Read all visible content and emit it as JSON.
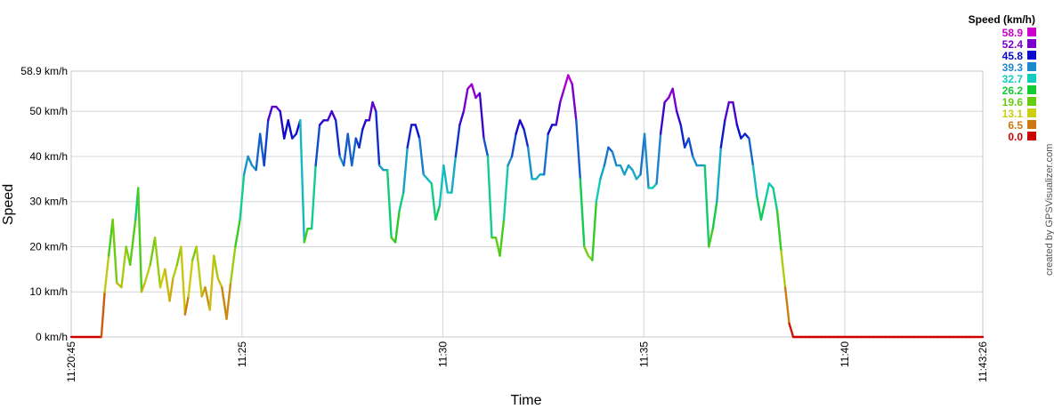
{
  "chart_data": {
    "type": "line",
    "xlabel": "Time",
    "ylabel": "Speed",
    "credit": "created by GPSVisualizer.com",
    "xlim": [
      0,
      1361
    ],
    "ylim": [
      0,
      58.9
    ],
    "y_ticks": [
      {
        "value": 0,
        "label": "0 km/h"
      },
      {
        "value": 10,
        "label": "10 km/h"
      },
      {
        "value": 20,
        "label": "20 km/h"
      },
      {
        "value": 30,
        "label": "30 km/h"
      },
      {
        "value": 40,
        "label": "40 km/h"
      },
      {
        "value": 50,
        "label": "50 km/h"
      },
      {
        "value": 58.9,
        "label": "58.9 km/h"
      }
    ],
    "x_ticks": [
      {
        "t": 0,
        "label": "11:20:45"
      },
      {
        "t": 255,
        "label": "11:25"
      },
      {
        "t": 555,
        "label": "11:30"
      },
      {
        "t": 855,
        "label": "11:35"
      },
      {
        "t": 1155,
        "label": "11:40"
      },
      {
        "t": 1361,
        "label": "11:43:26"
      }
    ],
    "legend": {
      "title": "Speed (km/h)",
      "placement": "top-right",
      "items": [
        {
          "label": "58.9",
          "color": "#cc00cc"
        },
        {
          "label": "52.4",
          "color": "#7a00cc"
        },
        {
          "label": "45.8",
          "color": "#0a0acc"
        },
        {
          "label": "39.3",
          "color": "#1a88cc"
        },
        {
          "label": "32.7",
          "color": "#11ccbb"
        },
        {
          "label": "26.2",
          "color": "#11cc33"
        },
        {
          "label": "19.6",
          "color": "#66cc11"
        },
        {
          "label": "13.1",
          "color": "#cccc11"
        },
        {
          "label": "6.5",
          "color": "#cc7711"
        },
        {
          "label": "0.0",
          "color": "#cc0000"
        }
      ]
    },
    "series": [
      {
        "t": [
          0,
          45,
          50,
          56,
          62,
          68,
          75,
          82,
          88,
          96,
          100,
          105,
          110,
          118,
          125,
          133,
          140,
          147,
          152,
          158,
          164,
          170,
          175,
          181,
          187,
          195,
          200,
          207,
          213,
          219,
          225,
          232,
          238,
          245,
          252,
          258,
          264,
          270,
          276,
          282,
          288,
          294,
          300,
          306,
          312,
          318,
          324,
          330,
          336,
          342,
          348,
          353,
          359,
          365,
          371,
          377,
          383,
          389,
          395,
          401,
          407,
          413,
          419,
          425,
          430,
          435,
          440,
          445,
          450,
          455,
          460,
          466,
          472,
          478,
          484,
          490,
          496,
          502,
          508,
          514,
          520,
          526,
          532,
          538,
          544,
          550,
          556,
          562,
          568,
          574,
          580,
          586,
          592,
          598,
          604,
          610,
          616,
          622,
          628,
          634,
          640,
          646,
          652,
          658,
          664,
          670,
          676,
          682,
          688,
          694,
          700,
          706,
          712,
          718,
          724,
          730,
          736,
          742,
          748,
          754,
          760,
          766,
          772,
          778,
          784,
          790,
          796,
          802,
          808,
          814,
          820,
          826,
          832,
          838,
          844,
          850,
          856,
          862,
          868,
          874,
          880,
          886,
          892,
          898,
          904,
          910,
          916,
          922,
          928,
          934,
          940,
          946,
          952,
          958,
          964,
          970,
          976,
          982,
          988,
          994,
          1000,
          1006,
          1012,
          1018,
          1024,
          1030,
          1036,
          1042,
          1048,
          1054,
          1060,
          1066,
          1072,
          1078,
          1084,
          1090,
          1096,
          1102,
          1108,
          1114,
          1120,
          1126,
          1132,
          1138,
          1144,
          1150,
          1156,
          1162,
          1168,
          1174,
          1180,
          1186,
          1192,
          1198,
          1204,
          1210,
          1216,
          1222,
          1228,
          1234,
          1240,
          1246,
          1252,
          1258,
          1264,
          1270,
          1276,
          1282,
          1288,
          1294,
          1300,
          1306,
          1312,
          1318,
          1324,
          1330,
          1336,
          1340,
          1361
        ],
        "values": [
          0,
          0,
          10,
          18,
          26,
          12,
          11,
          20,
          16,
          26,
          33,
          10,
          12,
          16,
          22,
          11,
          15,
          8,
          13,
          16,
          20,
          5,
          9,
          17,
          20,
          9,
          11,
          6,
          18,
          13,
          11,
          4,
          12,
          20,
          26,
          36,
          40,
          38,
          37,
          45,
          38,
          48,
          51,
          51,
          50,
          44,
          48,
          44,
          45,
          48,
          21,
          24,
          24,
          38,
          47,
          48,
          48,
          50,
          48,
          40,
          38,
          45,
          38,
          44,
          42,
          46,
          48,
          48,
          52,
          50,
          38,
          37,
          37,
          22,
          21,
          28,
          32,
          42,
          47,
          47,
          44,
          36,
          35,
          34,
          26,
          29,
          38,
          32,
          32,
          40,
          47,
          50,
          55,
          56,
          53,
          54,
          44,
          40,
          22,
          22,
          18,
          26,
          38,
          40,
          45,
          48,
          46,
          42,
          35,
          35,
          36,
          36,
          45,
          47,
          47,
          52,
          55,
          58,
          56,
          48,
          35,
          20,
          18,
          17,
          30,
          35,
          38,
          42,
          41,
          38,
          38,
          36,
          38,
          37,
          35,
          36,
          45,
          33,
          33,
          34,
          45,
          52,
          53,
          55,
          50,
          47,
          42,
          44,
          40,
          38,
          38,
          38,
          20,
          24,
          30,
          42,
          48,
          52,
          52,
          47,
          44,
          45,
          44,
          38,
          31,
          26,
          30,
          34,
          33,
          28,
          19,
          11,
          3,
          0,
          0,
          0,
          0,
          0,
          0,
          0,
          0,
          0,
          0,
          0,
          0,
          0,
          0,
          0,
          0,
          0,
          0,
          0,
          0,
          0,
          0,
          0,
          0,
          0,
          0,
          0,
          0,
          0,
          0,
          0,
          0,
          0,
          0,
          0,
          0,
          0,
          0,
          0,
          0,
          0,
          0,
          0,
          0,
          0,
          0
        ]
      }
    ]
  }
}
